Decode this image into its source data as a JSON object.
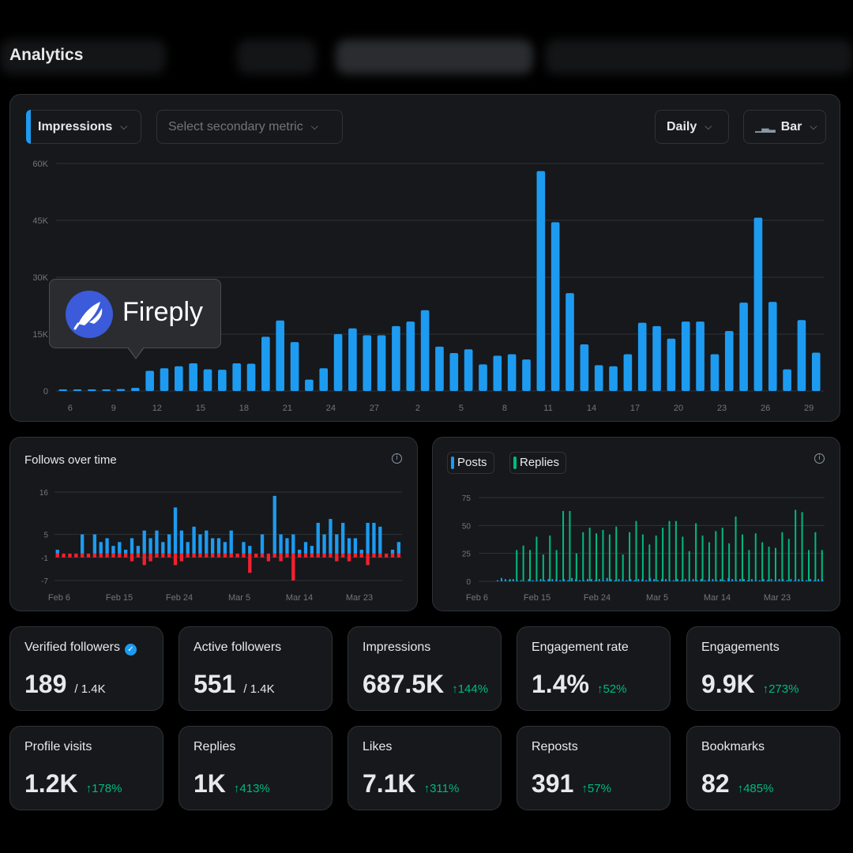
{
  "page": {
    "title": "Analytics"
  },
  "toolbar": {
    "primary_metric": "Impressions",
    "secondary_metric_placeholder": "Select secondary metric",
    "interval": "Daily",
    "chart_style": "Bar"
  },
  "tooltip": {
    "brand": "Fireply",
    "logo_icon": "firefly-logo-icon"
  },
  "follows_panel": {
    "title": "Follows over time"
  },
  "posts_panel": {
    "legend_posts": "Posts",
    "legend_replies": "Replies"
  },
  "colors": {
    "blue": "#1d9bf0",
    "red": "#f4212e",
    "green": "#00ba7c",
    "card": "#16181c",
    "border": "#2f3336"
  },
  "stats": [
    {
      "label": "Verified followers",
      "value": "189",
      "sub": "/ 1.4K",
      "verified": true
    },
    {
      "label": "Active followers",
      "value": "551",
      "sub": "/ 1.4K"
    },
    {
      "label": "Impressions",
      "value": "687.5K",
      "change": "144%"
    },
    {
      "label": "Engagement rate",
      "value": "1.4%",
      "change": "52%"
    },
    {
      "label": "Engagements",
      "value": "9.9K",
      "change": "273%"
    },
    {
      "label": "Profile visits",
      "value": "1.2K",
      "change": "178%"
    },
    {
      "label": "Replies",
      "value": "1K",
      "change": "413%"
    },
    {
      "label": "Likes",
      "value": "7.1K",
      "change": "311%"
    },
    {
      "label": "Reposts",
      "value": "391",
      "change": "57%"
    },
    {
      "label": "Bookmarks",
      "value": "82",
      "change": "485%"
    }
  ],
  "chart_data": [
    {
      "type": "bar",
      "name": "impressions",
      "ylim": [
        0,
        60000
      ],
      "y_ticks": [
        {
          "v": 0,
          "label": "0"
        },
        {
          "v": 15000,
          "label": "15K"
        },
        {
          "v": 30000,
          "label": "30K"
        },
        {
          "v": 45000,
          "label": "45K"
        },
        {
          "v": 60000,
          "label": "60K"
        }
      ],
      "x_tick_labels": [
        "6",
        "9",
        "12",
        "15",
        "18",
        "21",
        "24",
        "27",
        "2",
        "5",
        "8",
        "11",
        "14",
        "17",
        "20",
        "23",
        "26",
        "29"
      ],
      "values": [
        100,
        200,
        250,
        300,
        500,
        800,
        5300,
        6000,
        6500,
        7300,
        5700,
        5600,
        7300,
        7200,
        14300,
        18600,
        12900,
        3000,
        6000,
        15000,
        16500,
        14700,
        14700,
        17100,
        18300,
        21300,
        11700,
        10000,
        11000,
        7000,
        9300,
        9700,
        8300,
        58000,
        44500,
        25800,
        12300,
        6800,
        6500,
        9700,
        18000,
        17100,
        13800,
        18300,
        18300,
        9700,
        15800,
        23300,
        45700,
        23500,
        5700,
        18700,
        10100
      ]
    },
    {
      "type": "bar",
      "name": "follows",
      "ylim": [
        -7,
        16
      ],
      "y_ticks": [
        {
          "v": 16,
          "label": "16"
        },
        {
          "v": 5,
          "label": "5"
        },
        {
          "v": -1,
          "label": "-1"
        },
        {
          "v": -7,
          "label": "-7"
        }
      ],
      "x_tick_labels": [
        "Feb 6",
        "Feb 15",
        "Feb 24",
        "Mar 5",
        "Mar 14",
        "Mar 23"
      ],
      "series": [
        {
          "name": "gains",
          "values": [
            1,
            0,
            0,
            0,
            5,
            0,
            5,
            3,
            4,
            2,
            3,
            1,
            4,
            2,
            6,
            4,
            6,
            3,
            5,
            12,
            6,
            3,
            7,
            5,
            6,
            4,
            4,
            3,
            6,
            0,
            3,
            2,
            0,
            5,
            0,
            15,
            5,
            4,
            5,
            1,
            3,
            2,
            8,
            5,
            9,
            5,
            8,
            4,
            4,
            1,
            8,
            8,
            7,
            0,
            1,
            3
          ]
        },
        {
          "name": "losses",
          "values": [
            -1,
            -1,
            -1,
            -1,
            -1,
            -1,
            -1,
            -1,
            -1,
            -1,
            -1,
            -1,
            -2,
            -1,
            -3,
            -2,
            -1,
            -1,
            -1,
            -3,
            -2,
            -1,
            -1,
            -1,
            -1,
            -1,
            -1,
            -1,
            -1,
            -1,
            -1,
            -5,
            -1,
            -1,
            -2,
            -1,
            -2,
            -1,
            -7,
            -1,
            -1,
            -1,
            -1,
            -1,
            -1,
            -2,
            -1,
            -2,
            -1,
            -1,
            -3,
            -1,
            -1,
            -1,
            -1,
            -1
          ]
        }
      ]
    },
    {
      "type": "bar",
      "name": "posts_replies",
      "ylim": [
        0,
        75
      ],
      "y_ticks": [
        {
          "v": 0,
          "label": "0"
        },
        {
          "v": 25,
          "label": "25"
        },
        {
          "v": 50,
          "label": "50"
        },
        {
          "v": 75,
          "label": "75"
        }
      ],
      "x_tick_labels": [
        "Feb 6",
        "Feb 15",
        "Feb 24",
        "Mar 5",
        "Mar 14",
        "Mar 23"
      ],
      "series": [
        {
          "name": "Posts",
          "values": [
            1,
            3,
            2,
            1,
            2,
            1,
            1,
            0,
            2,
            1,
            1,
            2,
            1,
            2,
            2,
            2,
            1,
            2,
            1,
            3,
            2,
            1,
            1,
            2,
            2,
            1,
            2,
            1,
            3,
            2,
            1,
            2,
            2,
            1,
            2,
            1,
            2,
            2,
            1,
            3,
            2,
            1,
            2,
            2,
            1,
            1,
            2,
            1,
            2,
            1,
            2,
            1,
            2,
            1,
            2,
            2,
            1,
            2,
            1,
            3,
            2,
            1,
            2,
            2,
            1,
            2,
            1,
            1,
            2,
            1,
            2,
            1,
            2,
            2,
            1,
            2,
            1,
            2,
            1,
            1,
            2,
            1,
            2,
            2
          ]
        },
        {
          "name": "Replies",
          "values": [
            0,
            0,
            0,
            0,
            2,
            0,
            28,
            0,
            32,
            0,
            28,
            0,
            40,
            0,
            24,
            0,
            41,
            0,
            28,
            0,
            63,
            0,
            63,
            0,
            25,
            0,
            44,
            0,
            48,
            0,
            43,
            0,
            46,
            0,
            42,
            0,
            49,
            0,
            24,
            0,
            44,
            0,
            54,
            0,
            42,
            0,
            33,
            0,
            41,
            0,
            48,
            0,
            54,
            0,
            54,
            0,
            40,
            0,
            27,
            0,
            52,
            0,
            41,
            0,
            35,
            0,
            45,
            0,
            48,
            0,
            34,
            0,
            58,
            0,
            42,
            0,
            28,
            0,
            43,
            0,
            35,
            0,
            31,
            0,
            30,
            0,
            44,
            0,
            38,
            0,
            64,
            0,
            62,
            0,
            28,
            0,
            44,
            0,
            28
          ]
        }
      ]
    }
  ]
}
